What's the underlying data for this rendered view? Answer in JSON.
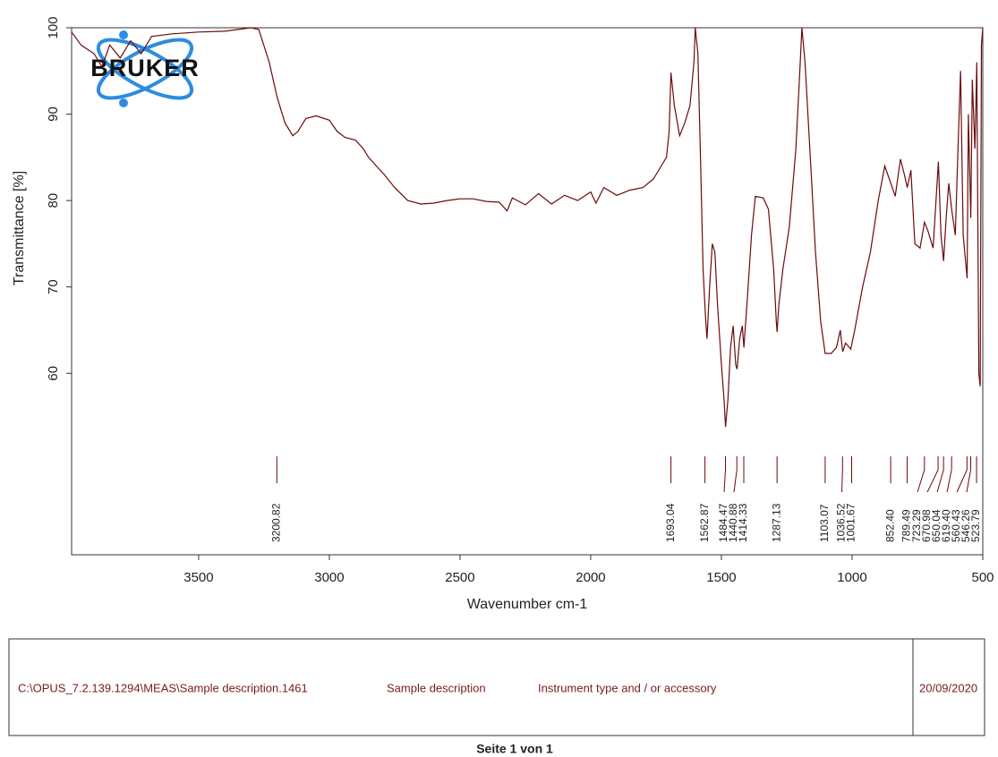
{
  "chart_data": {
    "type": "line",
    "y_label": "Transmittance [%]",
    "x_label": "Wavenumber cm-1",
    "logo": "BRUKER",
    "xlim": [
      3986,
      500
    ],
    "ylim": [
      39,
      100
    ],
    "xticks": [
      3500,
      3000,
      2500,
      2000,
      1500,
      1000,
      500
    ],
    "yticks": [
      60,
      70,
      80,
      90,
      100
    ],
    "x": [
      3986,
      3950,
      3900,
      3870,
      3840,
      3800,
      3760,
      3720,
      3680,
      3600,
      3500,
      3400,
      3300,
      3270,
      3230,
      3200,
      3170,
      3140,
      3120,
      3090,
      3050,
      3000,
      2970,
      2940,
      2900,
      2870,
      2850,
      2820,
      2790,
      2750,
      2700,
      2650,
      2600,
      2550,
      2500,
      2450,
      2400,
      2350,
      2320,
      2300,
      2250,
      2200,
      2150,
      2100,
      2050,
      2000,
      1980,
      1950,
      1900,
      1850,
      1800,
      1760,
      1730,
      1710,
      1700,
      1693,
      1680,
      1660,
      1640,
      1620,
      1605,
      1600,
      1590,
      1580,
      1570,
      1560,
      1555,
      1545,
      1535,
      1525,
      1515,
      1500,
      1490,
      1484,
      1475,
      1465,
      1455,
      1445,
      1440,
      1430,
      1420,
      1414,
      1400,
      1385,
      1370,
      1340,
      1320,
      1300,
      1290,
      1287,
      1280,
      1265,
      1240,
      1215,
      1200,
      1192,
      1180,
      1160,
      1140,
      1120,
      1103,
      1080,
      1060,
      1045,
      1036,
      1025,
      1005,
      990,
      960,
      930,
      900,
      875,
      852,
      835,
      815,
      800,
      789,
      775,
      760,
      740,
      723,
      710,
      690,
      670,
      660,
      650,
      640,
      630,
      619,
      605,
      595,
      585,
      575,
      560,
      555,
      546,
      540,
      530,
      523,
      515,
      510,
      505,
      500
    ],
    "series": [
      {
        "color": "#6b0a0a",
        "values": [
          99.5,
          98,
          97,
          95.5,
          98,
          96.5,
          98.5,
          97,
          99,
          99.3,
          99.5,
          99.6,
          100,
          99.8,
          96,
          92,
          89,
          87.5,
          88,
          89.5,
          89.8,
          89.3,
          88,
          87.3,
          87,
          86,
          85,
          84,
          83,
          81.5,
          80,
          79.6,
          79.7,
          80,
          80.2,
          80.2,
          79.9,
          79.8,
          78.8,
          80.3,
          79.5,
          80.8,
          79.6,
          80.6,
          80,
          81,
          79.7,
          81.5,
          80.6,
          81.2,
          81.5,
          82.5,
          84,
          85,
          88,
          94.8,
          91,
          87.5,
          89,
          91,
          96,
          100,
          97,
          85,
          72,
          66,
          64,
          70,
          75,
          74,
          68,
          61,
          57,
          53.8,
          57,
          63,
          65.5,
          61,
          60.5,
          64,
          65.5,
          63,
          69,
          76,
          80.5,
          80.3,
          79,
          72,
          66,
          64.8,
          68,
          72,
          77,
          86,
          95,
          100,
          96,
          85,
          74,
          66,
          62.3,
          62.3,
          63,
          65,
          62.5,
          63.5,
          62.8,
          65,
          70,
          74,
          80,
          84,
          82,
          80.5,
          84.8,
          83,
          81.5,
          83.5,
          75,
          74.5,
          77.5,
          76.5,
          74.5,
          84.5,
          76,
          73,
          78,
          82,
          79,
          76,
          86,
          95,
          76,
          71,
          90,
          78,
          94,
          86,
          96,
          60,
          58.5,
          98,
          100
        ]
      }
    ],
    "peaks": [
      3200.82,
      1693.04,
      1562.87,
      1484.47,
      1440.88,
      1414.33,
      1287.13,
      1103.07,
      1036.52,
      1001.67,
      {
        "value": 852.4,
        "label": "852.40"
      },
      789.49,
      723.29,
      670.98,
      650.04,
      {
        "value": 619.4,
        "label": "619.40"
      },
      560.43,
      546.26,
      523.79
    ]
  },
  "footer": {
    "path": "C:\\OPUS_7.2.139.1294\\MEAS\\Sample description.1461",
    "sample": "Sample description",
    "instrument": "Instrument type and / or accessory",
    "date": "20/09/2020"
  },
  "page_label": "Seite 1 von 1"
}
